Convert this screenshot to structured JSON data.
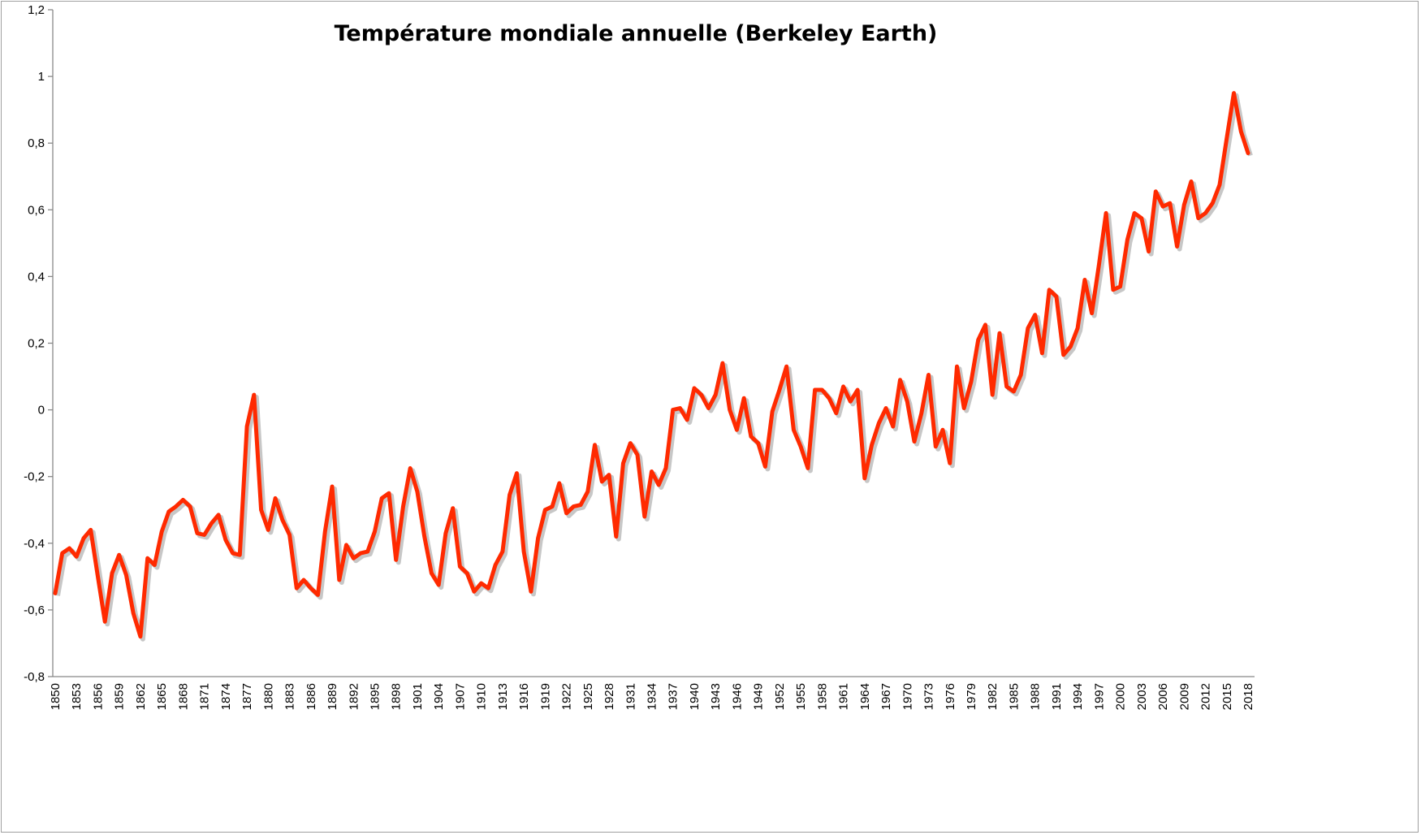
{
  "chart_data": {
    "type": "line",
    "title": "Température mondiale annuelle (Berkeley Earth)",
    "xlabel": "",
    "ylabel": "",
    "ylim": [
      -0.8,
      1.2
    ],
    "yticks": [
      -0.8,
      -0.6,
      -0.4,
      -0.2,
      0,
      0.2,
      0.4,
      0.6,
      0.8,
      1,
      1.2
    ],
    "ytick_labels": [
      "-0,8",
      "-0,6",
      "-0,4",
      "-0,2",
      "0",
      "0,2",
      "0,4",
      "0,6",
      "0,8",
      "1",
      "1,2"
    ],
    "x_tick_labels": [
      "1850",
      "1853",
      "1856",
      "1859",
      "1862",
      "1865",
      "1868",
      "1871",
      "1874",
      "1877",
      "1880",
      "1883",
      "1886",
      "1889",
      "1892",
      "1895",
      "1898",
      "1901",
      "1904",
      "1907",
      "1910",
      "1913",
      "1916",
      "1919",
      "1922",
      "1925",
      "1928",
      "1931",
      "1934",
      "1937",
      "1940",
      "1943",
      "1946",
      "1949",
      "1952",
      "1955",
      "1958",
      "1961",
      "1964",
      "1967",
      "1970",
      "1973",
      "1976",
      "1979",
      "1982",
      "1985",
      "1988",
      "1991",
      "1994",
      "1997",
      "2000",
      "2003",
      "2006",
      "2009",
      "2012",
      "2015",
      "2018"
    ],
    "grid": false,
    "legend": "none",
    "line_color": "#ff2a00",
    "x_start": 1850,
    "x_end": 2018,
    "series": [
      {
        "values": [
          -0.55,
          -0.43,
          -0.415,
          -0.44,
          -0.385,
          -0.36,
          -0.5,
          -0.635,
          -0.49,
          -0.435,
          -0.495,
          -0.61,
          -0.68,
          -0.445,
          -0.465,
          -0.365,
          -0.305,
          -0.29,
          -0.27,
          -0.29,
          -0.37,
          -0.375,
          -0.34,
          -0.315,
          -0.39,
          -0.43,
          -0.435,
          -0.05,
          0.045,
          -0.3,
          -0.36,
          -0.265,
          -0.33,
          -0.375,
          -0.535,
          -0.51,
          -0.535,
          -0.555,
          -0.365,
          -0.23,
          -0.51,
          -0.405,
          -0.445,
          -0.43,
          -0.425,
          -0.365,
          -0.265,
          -0.25,
          -0.45,
          -0.29,
          -0.175,
          -0.245,
          -0.38,
          -0.49,
          -0.525,
          -0.37,
          -0.295,
          -0.47,
          -0.49,
          -0.545,
          -0.52,
          -0.535,
          -0.465,
          -0.425,
          -0.255,
          -0.19,
          -0.425,
          -0.545,
          -0.385,
          -0.3,
          -0.29,
          -0.22,
          -0.31,
          -0.29,
          -0.285,
          -0.245,
          -0.105,
          -0.215,
          -0.195,
          -0.38,
          -0.16,
          -0.1,
          -0.135,
          -0.32,
          -0.185,
          -0.225,
          -0.175,
          0.0,
          0.005,
          -0.03,
          0.065,
          0.045,
          0.005,
          0.045,
          0.14,
          0.0,
          -0.06,
          0.035,
          -0.08,
          -0.1,
          -0.17,
          -0.005,
          0.06,
          0.13,
          -0.06,
          -0.11,
          -0.175,
          0.06,
          0.06,
          0.035,
          -0.01,
          0.07,
          0.025,
          0.06,
          -0.205,
          -0.105,
          -0.04,
          0.005,
          -0.05,
          0.09,
          0.025,
          -0.095,
          -0.01,
          0.105,
          -0.11,
          -0.06,
          -0.16,
          0.13,
          0.005,
          0.085,
          0.21,
          0.255,
          0.045,
          0.23,
          0.07,
          0.055,
          0.105,
          0.245,
          0.285,
          0.17,
          0.36,
          0.34,
          0.165,
          0.19,
          0.245,
          0.39,
          0.29,
          0.435,
          0.59,
          0.36,
          0.37,
          0.51,
          0.59,
          0.575,
          0.475,
          0.655,
          0.61,
          0.62,
          0.49,
          0.615,
          0.685,
          0.575,
          0.59,
          0.62,
          0.675,
          0.815,
          0.95,
          0.835,
          0.77
        ]
      }
    ]
  }
}
